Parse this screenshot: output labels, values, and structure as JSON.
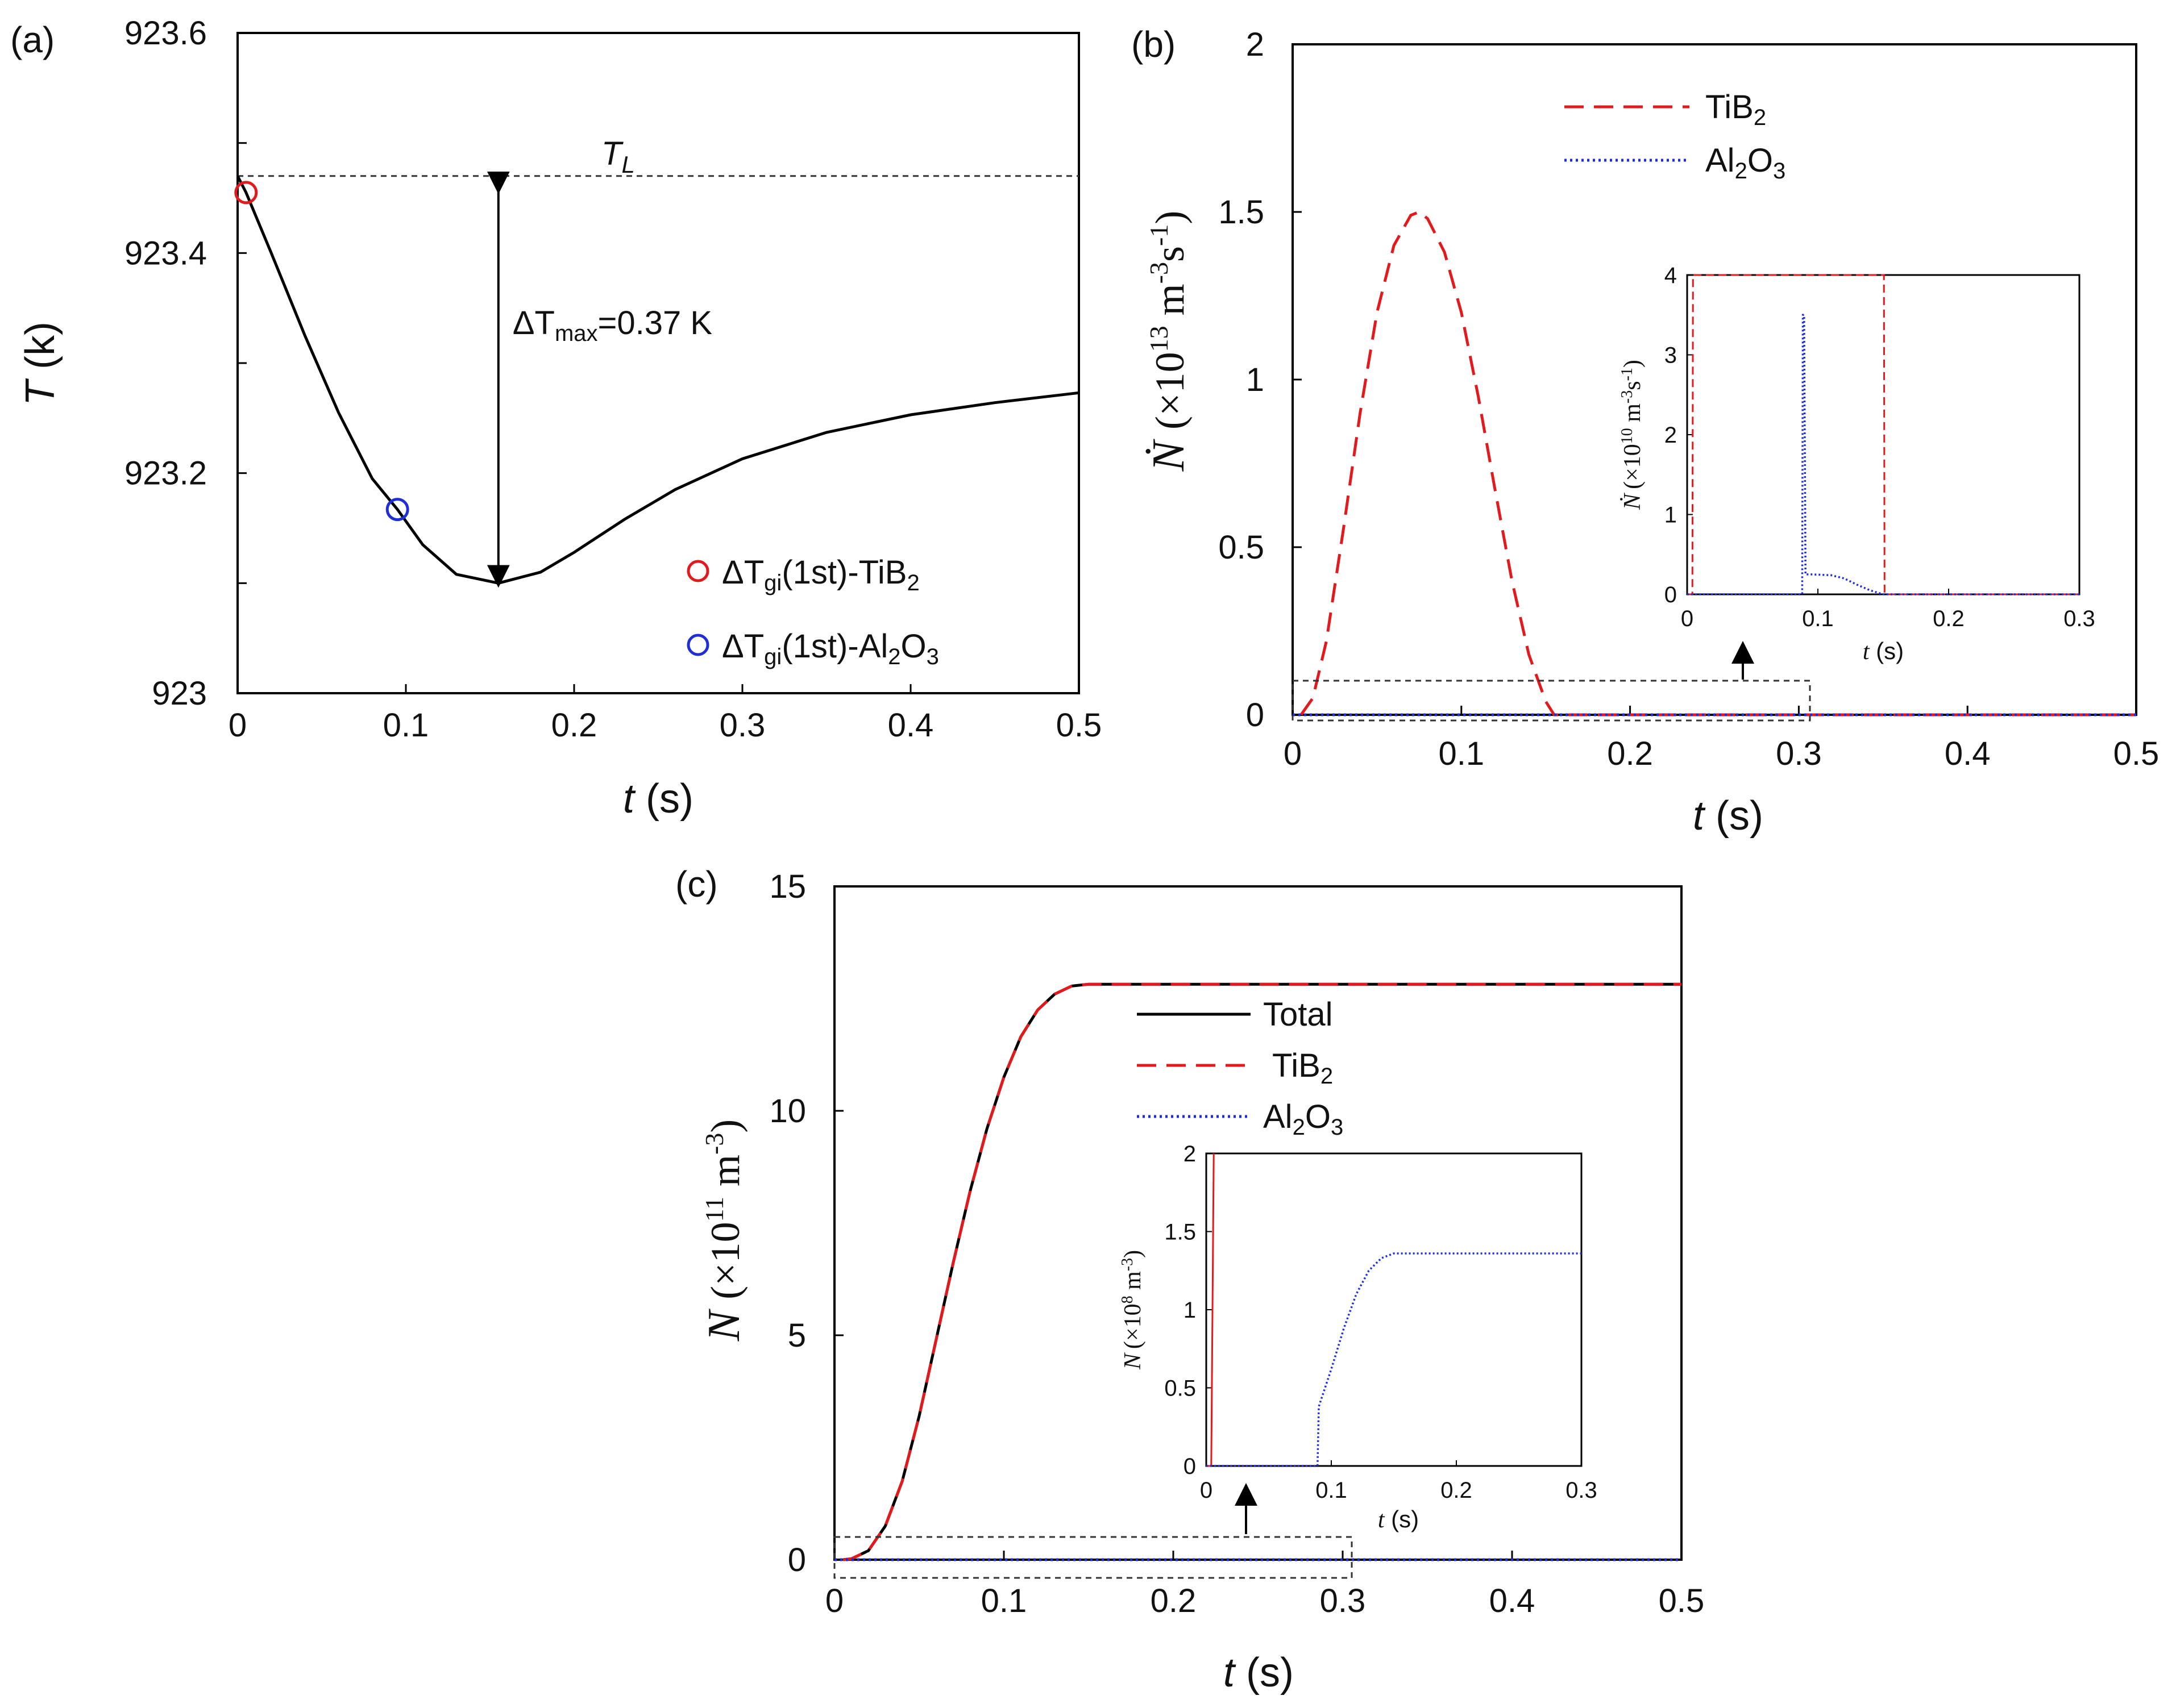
{
  "chart_data": [
    {
      "panel": "(a)",
      "type": "line",
      "xlabel_var": "t",
      "xlabel_unit": " (s)",
      "ylabel_var": "T",
      "ylabel_unit": " (k)",
      "xlim": [
        0,
        0.5
      ],
      "ylim": [
        923.0,
        923.6
      ],
      "xticks": [
        0,
        0.1,
        0.2,
        0.3,
        0.4,
        0.5
      ],
      "xtick_labels": [
        "0",
        "0.1",
        "0.2",
        "0.3",
        "0.4",
        "0.5"
      ],
      "yticks": [
        923.0,
        923.1,
        923.2,
        923.3,
        923.4,
        923.5,
        923.6
      ],
      "ytick_labels": [
        "923",
        "",
        "923.2",
        "",
        "923.4",
        "",
        "923.6"
      ],
      "series": [
        {
          "name": "T",
          "color": "#000000",
          "x": [
            0,
            0.005,
            0.02,
            0.04,
            0.06,
            0.08,
            0.095,
            0.11,
            0.13,
            0.155,
            0.18,
            0.2,
            0.23,
            0.26,
            0.3,
            0.35,
            0.4,
            0.45,
            0.5
          ],
          "y": [
            923.47,
            923.455,
            923.4,
            923.325,
            923.255,
            923.195,
            923.167,
            923.135,
            923.108,
            923.1,
            923.11,
            923.128,
            923.158,
            923.185,
            923.213,
            923.237,
            923.253,
            923.264,
            923.273
          ]
        }
      ],
      "reference_line": {
        "label_main": "T",
        "label_sub": "L",
        "y": 923.47
      },
      "markers": [
        {
          "x": 0.005,
          "y": 923.455,
          "color": "#e31a1c",
          "legend_pre": "ΔT",
          "legend_sub": "gi",
          "legend_post": "(1st)-TiB",
          "legend_post_sub": "2",
          "legend_tail": ""
        },
        {
          "x": 0.095,
          "y": 923.167,
          "color": "#1f2fd8",
          "legend_pre": "ΔT",
          "legend_sub": "gi",
          "legend_post": "(1st)-Al",
          "legend_post_sub": "2",
          "legend_tail_main": "O",
          "legend_tail_sub": "3"
        }
      ],
      "annotation": {
        "pre": "ΔT",
        "sub": "max",
        "post": "=0.37 K",
        "x": 0.155,
        "y_top": 923.47,
        "y_bottom": 923.1
      }
    },
    {
      "panel": "(b)",
      "type": "line",
      "xlabel_var": "t",
      "xlabel_unit": " (s)",
      "ylabel_var": "Ṅ",
      "ylabel_unit": "(×10",
      "ylabel_exp": "13",
      "ylabel_unit2": " m",
      "ylabel_exp2": "-3",
      "ylabel_unit3": "s",
      "ylabel_exp3": "-1",
      "ylabel_close": ")",
      "xlim": [
        0,
        0.5
      ],
      "ylim": [
        0,
        2
      ],
      "xticks": [
        0,
        0.1,
        0.2,
        0.3,
        0.4,
        0.5
      ],
      "xtick_labels": [
        "0",
        "0.1",
        "0.2",
        "0.3",
        "0.4",
        "0.5"
      ],
      "yticks": [
        0,
        0.5,
        1,
        1.5,
        2
      ],
      "ytick_labels": [
        "0",
        "0.5",
        "1",
        "1.5",
        "2"
      ],
      "series": [
        {
          "name": "TiB",
          "name_sub": "2",
          "name_tail": "",
          "color": "#e31a1c",
          "style": "dashed",
          "x": [
            0.005,
            0.012,
            0.02,
            0.03,
            0.04,
            0.05,
            0.06,
            0.07,
            0.075,
            0.08,
            0.09,
            0.1,
            0.11,
            0.12,
            0.13,
            0.14,
            0.15,
            0.155,
            0.2,
            0.3,
            0.4,
            0.5
          ],
          "y": [
            0,
            0.05,
            0.22,
            0.55,
            0.9,
            1.2,
            1.4,
            1.49,
            1.5,
            1.48,
            1.38,
            1.2,
            0.95,
            0.67,
            0.4,
            0.18,
            0.04,
            0,
            0,
            0,
            0,
            0
          ]
        },
        {
          "name": "Al",
          "name_sub": "2",
          "name_tail": "O",
          "name_tail_sub": "3",
          "color": "#1f2fd8",
          "style": "dotted",
          "x": [
            0,
            0.5
          ],
          "y": [
            0,
            0
          ]
        }
      ],
      "inset": {
        "ylabel_var": "Ṅ",
        "ylabel_unit": "(×10",
        "ylabel_exp": "10",
        "ylabel_unit2": " m",
        "ylabel_exp2": "-3",
        "ylabel_unit3": "s",
        "ylabel_exp3": "-1",
        "ylabel_close": ")",
        "xlabel_var": "t",
        "xlabel_unit": " (s)",
        "xlim": [
          0,
          0.3
        ],
        "ylim": [
          0,
          4
        ],
        "xticks": [
          0,
          0.1,
          0.2,
          0.3
        ],
        "xtick_labels": [
          "0",
          "0.1",
          "0.2",
          "0.3"
        ],
        "yticks": [
          0,
          1,
          2,
          3,
          4
        ],
        "ytick_labels": [
          "0",
          "1",
          "2",
          "3",
          "4"
        ],
        "series": [
          {
            "name": "TiB2",
            "color": "#e31a1c",
            "style": "dashed",
            "x": [
              0,
              0.004,
              0.0045,
              0.005,
              0.15,
              0.1505,
              0.151,
              0.3
            ],
            "y": [
              0,
              0,
              4,
              4,
              4,
              4,
              0,
              0
            ]
          },
          {
            "name": "Al2O3",
            "color": "#1f2fd8",
            "style": "dotted",
            "x": [
              0,
              0.088,
              0.0885,
              0.0895,
              0.0905,
              0.095,
              0.11,
              0.12,
              0.13,
              0.14,
              0.15,
              0.3
            ],
            "y": [
              0,
              0,
              3.5,
              3.5,
              0.25,
              0.25,
              0.24,
              0.2,
              0.12,
              0.05,
              0,
              0
            ]
          }
        ]
      }
    },
    {
      "panel": "(c)",
      "type": "line",
      "xlabel_var": "t",
      "xlabel_unit": " (s)",
      "ylabel_var": "N",
      "ylabel_unit": "(×10",
      "ylabel_exp": "11",
      "ylabel_unit2": " m",
      "ylabel_exp2": "-3",
      "ylabel_close": ")",
      "xlim": [
        0,
        0.5
      ],
      "ylim": [
        0,
        15
      ],
      "xticks": [
        0,
        0.1,
        0.2,
        0.3,
        0.4,
        0.5
      ],
      "xtick_labels": [
        "0",
        "0.1",
        "0.2",
        "0.3",
        "0.4",
        "0.5"
      ],
      "yticks": [
        0,
        5,
        10,
        15
      ],
      "ytick_labels": [
        "0",
        "5",
        "10",
        "15"
      ],
      "series": [
        {
          "name": "Total",
          "color": "#000000",
          "style": "solid",
          "x": [
            0.005,
            0.01,
            0.02,
            0.03,
            0.04,
            0.05,
            0.06,
            0.07,
            0.08,
            0.09,
            0.1,
            0.11,
            0.12,
            0.13,
            0.14,
            0.15,
            0.16,
            0.2,
            0.3,
            0.4,
            0.5
          ],
          "y": [
            0,
            0.02,
            0.2,
            0.75,
            1.75,
            3.2,
            4.9,
            6.6,
            8.2,
            9.6,
            10.75,
            11.65,
            12.25,
            12.6,
            12.78,
            12.82,
            12.82,
            12.82,
            12.82,
            12.82,
            12.82
          ]
        },
        {
          "name": "TiB",
          "name_sub": "2",
          "color": "#e31a1c",
          "style": "dashed",
          "x": [
            0.005,
            0.01,
            0.02,
            0.03,
            0.04,
            0.05,
            0.06,
            0.07,
            0.08,
            0.09,
            0.1,
            0.11,
            0.12,
            0.13,
            0.14,
            0.15,
            0.16,
            0.2,
            0.3,
            0.4,
            0.5
          ],
          "y": [
            0,
            0.02,
            0.2,
            0.75,
            1.75,
            3.2,
            4.9,
            6.6,
            8.2,
            9.6,
            10.75,
            11.65,
            12.25,
            12.6,
            12.78,
            12.82,
            12.82,
            12.82,
            12.82,
            12.82,
            12.82
          ]
        },
        {
          "name": "Al",
          "name_sub": "2",
          "name_tail": "O",
          "name_tail_sub": "3",
          "color": "#1f2fd8",
          "style": "dotted",
          "x": [
            0,
            0.5
          ],
          "y": [
            0,
            0
          ]
        }
      ],
      "inset": {
        "ylabel_var": "N",
        "ylabel_unit": "(×10",
        "ylabel_exp": "8",
        "ylabel_unit2": " m",
        "ylabel_exp2": "-3",
        "ylabel_close": ")",
        "xlabel_var": "t",
        "xlabel_unit": " (s)",
        "xlim": [
          0,
          0.3
        ],
        "ylim": [
          0,
          2
        ],
        "xticks": [
          0,
          0.1,
          0.2,
          0.3
        ],
        "xtick_labels": [
          "0",
          "0.1",
          "0.2",
          "0.3"
        ],
        "yticks": [
          0,
          0.5,
          1,
          1.5,
          2
        ],
        "ytick_labels": [
          "0",
          "0.5",
          "1",
          "1.5",
          "2"
        ],
        "series": [
          {
            "name": "TiB2",
            "color": "#e31a1c",
            "style": "solid",
            "x": [
              0,
              0.004,
              0.006
            ],
            "y": [
              0,
              0,
              2
            ]
          },
          {
            "name": "Al2O3",
            "color": "#1f2fd8",
            "style": "dotted",
            "x": [
              0,
              0.089,
              0.09,
              0.1,
              0.11,
              0.12,
              0.13,
              0.14,
              0.15,
              0.3
            ],
            "y": [
              0,
              0,
              0.38,
              0.62,
              0.88,
              1.1,
              1.25,
              1.33,
              1.36,
              1.36
            ]
          }
        ]
      }
    }
  ]
}
